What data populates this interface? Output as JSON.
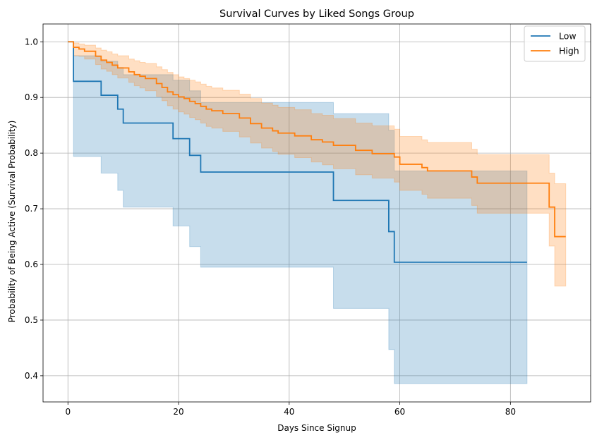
{
  "chart_data": {
    "type": "line",
    "title": "Survival Curves by Liked Songs Group",
    "xlabel": "Days Since Signup",
    "ylabel": "Probability of Being Active (Survival Probability)",
    "xlim": [
      -4.5,
      94.5
    ],
    "ylim": [
      0.353,
      1.032
    ],
    "xticks": [
      0,
      20,
      40,
      60,
      80
    ],
    "xtick_labels": [
      "0",
      "20",
      "40",
      "60",
      "80"
    ],
    "yticks": [
      0.4,
      0.5,
      0.6,
      0.7,
      0.8,
      0.9,
      1.0
    ],
    "ytick_labels": [
      "0.4",
      "0.5",
      "0.6",
      "0.7",
      "0.8",
      "0.9",
      "1.0"
    ],
    "grid": true,
    "legend_position": "top-right",
    "series": [
      {
        "name": "Low",
        "color": "#1f77b4",
        "step": "post",
        "x": [
          0,
          1,
          6,
          9,
          10,
          19,
          22,
          24,
          48,
          58,
          59,
          83
        ],
        "y": [
          1.0,
          0.929,
          0.904,
          0.879,
          0.854,
          0.826,
          0.796,
          0.766,
          0.715,
          0.659,
          0.604,
          0.604
        ],
        "ci_lower": [
          1.0,
          0.794,
          0.764,
          0.733,
          0.703,
          0.669,
          0.632,
          0.595,
          0.521,
          0.447,
          0.386,
          0.386
        ],
        "ci_upper": [
          1.0,
          0.975,
          0.965,
          0.954,
          0.941,
          0.931,
          0.912,
          0.891,
          0.871,
          0.841,
          0.768,
          0.768
        ]
      },
      {
        "name": "High",
        "color": "#ff7f0e",
        "step": "post",
        "x": [
          0,
          1,
          2,
          3,
          5,
          6,
          7,
          8,
          9,
          11,
          12,
          13,
          14,
          16,
          17,
          18,
          19,
          20,
          21,
          22,
          23,
          24,
          25,
          26,
          28,
          31,
          33,
          35,
          37,
          38,
          41,
          44,
          46,
          48,
          52,
          55,
          59,
          60,
          64,
          65,
          73,
          74,
          87,
          88,
          90
        ],
        "y": [
          1.0,
          0.99,
          0.987,
          0.983,
          0.974,
          0.967,
          0.963,
          0.958,
          0.953,
          0.946,
          0.941,
          0.938,
          0.934,
          0.925,
          0.918,
          0.91,
          0.905,
          0.901,
          0.898,
          0.893,
          0.889,
          0.884,
          0.879,
          0.876,
          0.871,
          0.863,
          0.853,
          0.845,
          0.84,
          0.836,
          0.831,
          0.824,
          0.82,
          0.814,
          0.805,
          0.799,
          0.793,
          0.78,
          0.774,
          0.768,
          0.757,
          0.746,
          0.703,
          0.65,
          0.65
        ],
        "ci_lower": [
          1.0,
          0.975,
          0.974,
          0.969,
          0.959,
          0.951,
          0.947,
          0.941,
          0.935,
          0.927,
          0.921,
          0.917,
          0.912,
          0.902,
          0.894,
          0.885,
          0.879,
          0.874,
          0.87,
          0.864,
          0.86,
          0.854,
          0.848,
          0.845,
          0.839,
          0.829,
          0.818,
          0.809,
          0.803,
          0.798,
          0.792,
          0.784,
          0.779,
          0.772,
          0.761,
          0.755,
          0.748,
          0.733,
          0.726,
          0.719,
          0.706,
          0.692,
          0.633,
          0.561,
          0.561
        ],
        "ci_upper": [
          1.0,
          0.998,
          0.996,
          0.994,
          0.989,
          0.985,
          0.982,
          0.978,
          0.975,
          0.969,
          0.966,
          0.963,
          0.961,
          0.955,
          0.95,
          0.945,
          0.941,
          0.937,
          0.934,
          0.931,
          0.928,
          0.924,
          0.92,
          0.917,
          0.913,
          0.906,
          0.898,
          0.89,
          0.886,
          0.882,
          0.878,
          0.871,
          0.868,
          0.862,
          0.854,
          0.849,
          0.843,
          0.83,
          0.824,
          0.819,
          0.807,
          0.797,
          0.764,
          0.745,
          0.745
        ]
      }
    ]
  }
}
